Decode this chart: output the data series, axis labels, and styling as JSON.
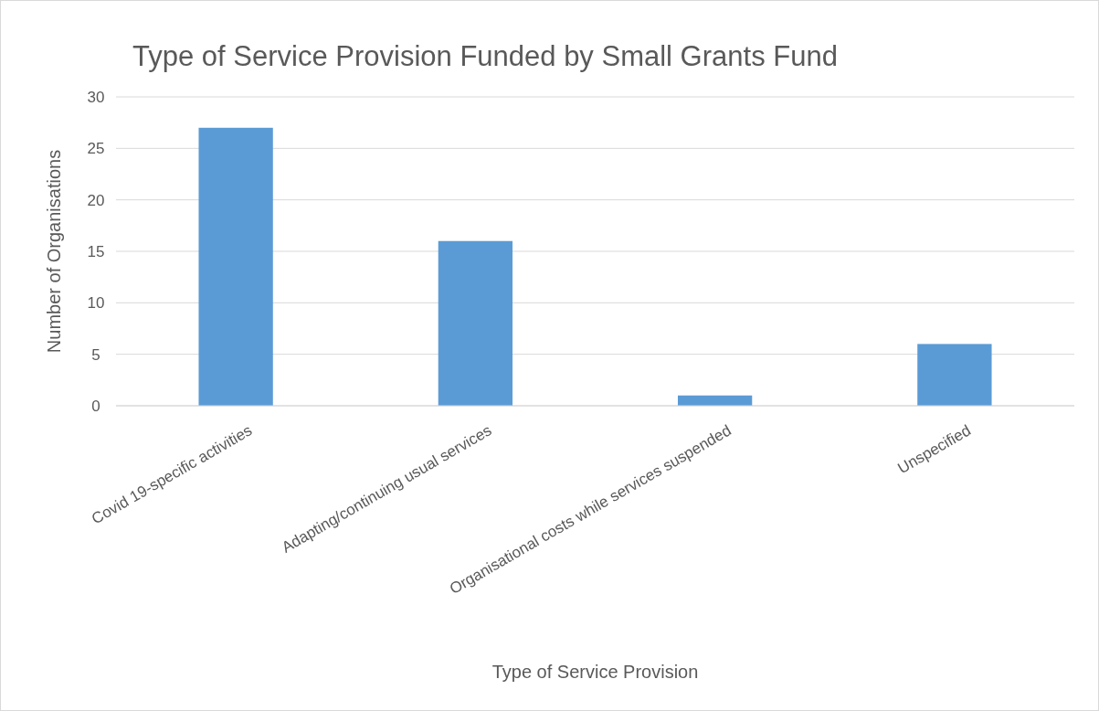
{
  "chart_data": {
    "type": "bar",
    "title": "Type of Service Provision Funded by Small Grants Fund",
    "xlabel": "Type of Service Provision",
    "ylabel": "Number of Organisations",
    "categories": [
      "Covid 19-specific activities",
      "Adapting/continuing usual services",
      "Organisational costs while services suspended",
      "Unspecified"
    ],
    "values": [
      27,
      16,
      1,
      6
    ],
    "color": "#5b9bd5",
    "ylim": [
      0,
      30
    ],
    "yticks": [
      0,
      5,
      10,
      15,
      20,
      25,
      30
    ],
    "grid": "y"
  }
}
